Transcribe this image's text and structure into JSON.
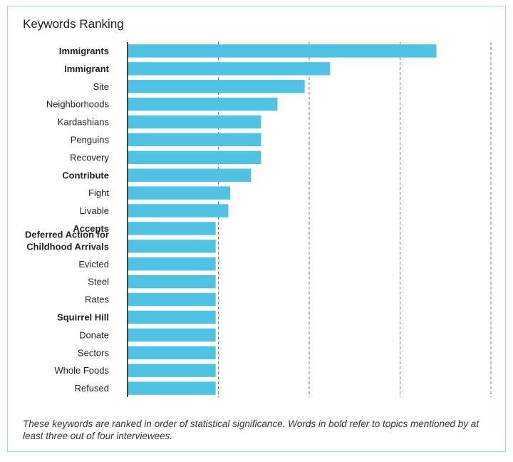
{
  "chart_data": {
    "type": "bar",
    "orientation": "horizontal",
    "title": "Keywords Ranking",
    "categories": [
      "Immigrants",
      "Immigrant",
      "Site",
      "Neighborhoods",
      "Kardashians",
      "Penguins",
      "Recovery",
      "Contribute",
      "Fight",
      "Livable",
      "Accepts",
      "Deferred Action for Childhood Arrivals",
      "Evicted",
      "Steel",
      "Rates",
      "Squirrel Hill",
      "Donate",
      "Sectors",
      "Whole Foods",
      "Refused"
    ],
    "bold": [
      true,
      true,
      false,
      false,
      false,
      false,
      false,
      true,
      false,
      false,
      true,
      true,
      false,
      false,
      false,
      true,
      false,
      false,
      false,
      false
    ],
    "values": [
      3.4,
      2.23,
      1.95,
      1.65,
      1.47,
      1.47,
      1.47,
      1.36,
      1.13,
      1.11,
      0.97,
      0.97,
      0.97,
      0.97,
      0.97,
      0.97,
      0.97,
      0.97,
      0.97,
      0.97
    ],
    "xlim": [
      0,
      4
    ],
    "gridlines": [
      1,
      2,
      3,
      4
    ],
    "grid": "dashed vertical",
    "bar_color": "#4fc3e3",
    "frame_color": "#9fd3e6"
  },
  "caption": "These keywords are ranked in order of statistical significance. Words in bold refer to topics mentioned by at least three out of four interviewees."
}
